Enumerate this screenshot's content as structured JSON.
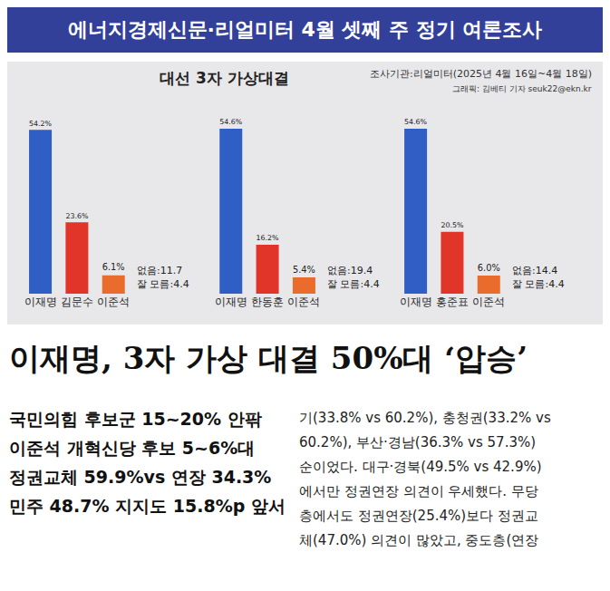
{
  "header": {
    "title": "에너지경제신문·리얼미터 4월 셋째 주 정기 여론조사"
  },
  "chart_panel": {
    "title": "대선 3자 가상대결",
    "source": [
      "조사기관:리얼미터(2025년 4월 16일~4월 18일)",
      "그래픽: 김베티 기자 seuk22@ekn.kr"
    ]
  },
  "chart_data": [
    {
      "type": "bar",
      "categories": [
        "이재명",
        "김문수",
        "이준석"
      ],
      "values": [
        54.2,
        23.6,
        6.1
      ],
      "value_labels": [
        "54.2%",
        "23.6%",
        "6.1%"
      ],
      "colors": [
        "#2f5fc4",
        "#e2352a",
        "#ea6c2c"
      ],
      "annotations": [
        "없음:11.7",
        "잘 모름:4.4"
      ],
      "ylim": [
        0,
        60
      ],
      "data_labels": true,
      "tick_labels": "x"
    },
    {
      "type": "bar",
      "categories": [
        "이재명",
        "한동훈",
        "이준석"
      ],
      "values": [
        54.6,
        16.2,
        5.4
      ],
      "value_labels": [
        "54.6%",
        "16.2%",
        "5.4%"
      ],
      "colors": [
        "#2f5fc4",
        "#e2352a",
        "#ea6c2c"
      ],
      "annotations": [
        "없음:19.4",
        "잘 모름:4.4"
      ],
      "ylim": [
        0,
        60
      ],
      "data_labels": true,
      "tick_labels": "x"
    },
    {
      "type": "bar",
      "categories": [
        "이재명",
        "홍준표",
        "이준석"
      ],
      "values": [
        54.6,
        20.5,
        6.0
      ],
      "value_labels": [
        "54.6%",
        "20.5%",
        "6.0%"
      ],
      "colors": [
        "#2f5fc4",
        "#e2352a",
        "#ea6c2c"
      ],
      "annotations": [
        "없음:14.4",
        "잘 모름:4.4"
      ],
      "ylim": [
        0,
        60
      ],
      "data_labels": true,
      "tick_labels": "x"
    }
  ],
  "article": {
    "headline": "이재명, 3자 가상 대결 50%대 ‘압승’",
    "subheads": [
      "국민의힘 후보군 15~20% 안팎",
      "이준석 개혁신당 후보 5~6%대",
      "정권교체 59.9%vs 연장 34.3%",
      "민주 48.7% 지지도 15.8%p 앞서"
    ],
    "body": [
      "기(33.8% vs 60.2%), 충청권(33.2% vs",
      "60.2%), 부산·경남(36.3% vs 57.3%)",
      "순이었다. 대구·경북(49.5% vs 42.9%)",
      "에서만 정권연장 의견이 우세했다. 무당",
      "층에서도 정권연장(25.4%)보다 정권교",
      "체(47.0%) 의견이 많았고, 중도층(연장"
    ]
  }
}
